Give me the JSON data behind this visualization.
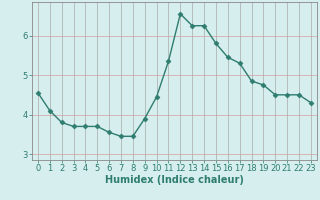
{
  "x": [
    0,
    1,
    2,
    3,
    4,
    5,
    6,
    7,
    8,
    9,
    10,
    11,
    12,
    13,
    14,
    15,
    16,
    17,
    18,
    19,
    20,
    21,
    22,
    23
  ],
  "y": [
    4.55,
    4.1,
    3.8,
    3.7,
    3.7,
    3.7,
    3.55,
    3.45,
    3.45,
    3.9,
    4.45,
    5.35,
    6.55,
    6.25,
    6.25,
    5.8,
    5.45,
    5.3,
    4.85,
    4.75,
    4.5,
    4.5,
    4.5,
    4.3
  ],
  "line_color": "#2e7d6e",
  "marker": "D",
  "marker_size": 2.5,
  "line_width": 1.0,
  "bg_color": "#d6eeee",
  "grid_color_x": "#aaaaaa",
  "grid_color_y": "#d4a0a0",
  "xlabel": "Humidex (Indice chaleur)",
  "xlim": [
    -0.5,
    23.5
  ],
  "ylim": [
    2.85,
    6.85
  ],
  "yticks": [
    3,
    4,
    5,
    6
  ],
  "xticks": [
    0,
    1,
    2,
    3,
    4,
    5,
    6,
    7,
    8,
    9,
    10,
    11,
    12,
    13,
    14,
    15,
    16,
    17,
    18,
    19,
    20,
    21,
    22,
    23
  ],
  "xlabel_fontsize": 7,
  "tick_fontsize": 6,
  "tick_color": "#2e7d6e",
  "spine_color": "#888888"
}
